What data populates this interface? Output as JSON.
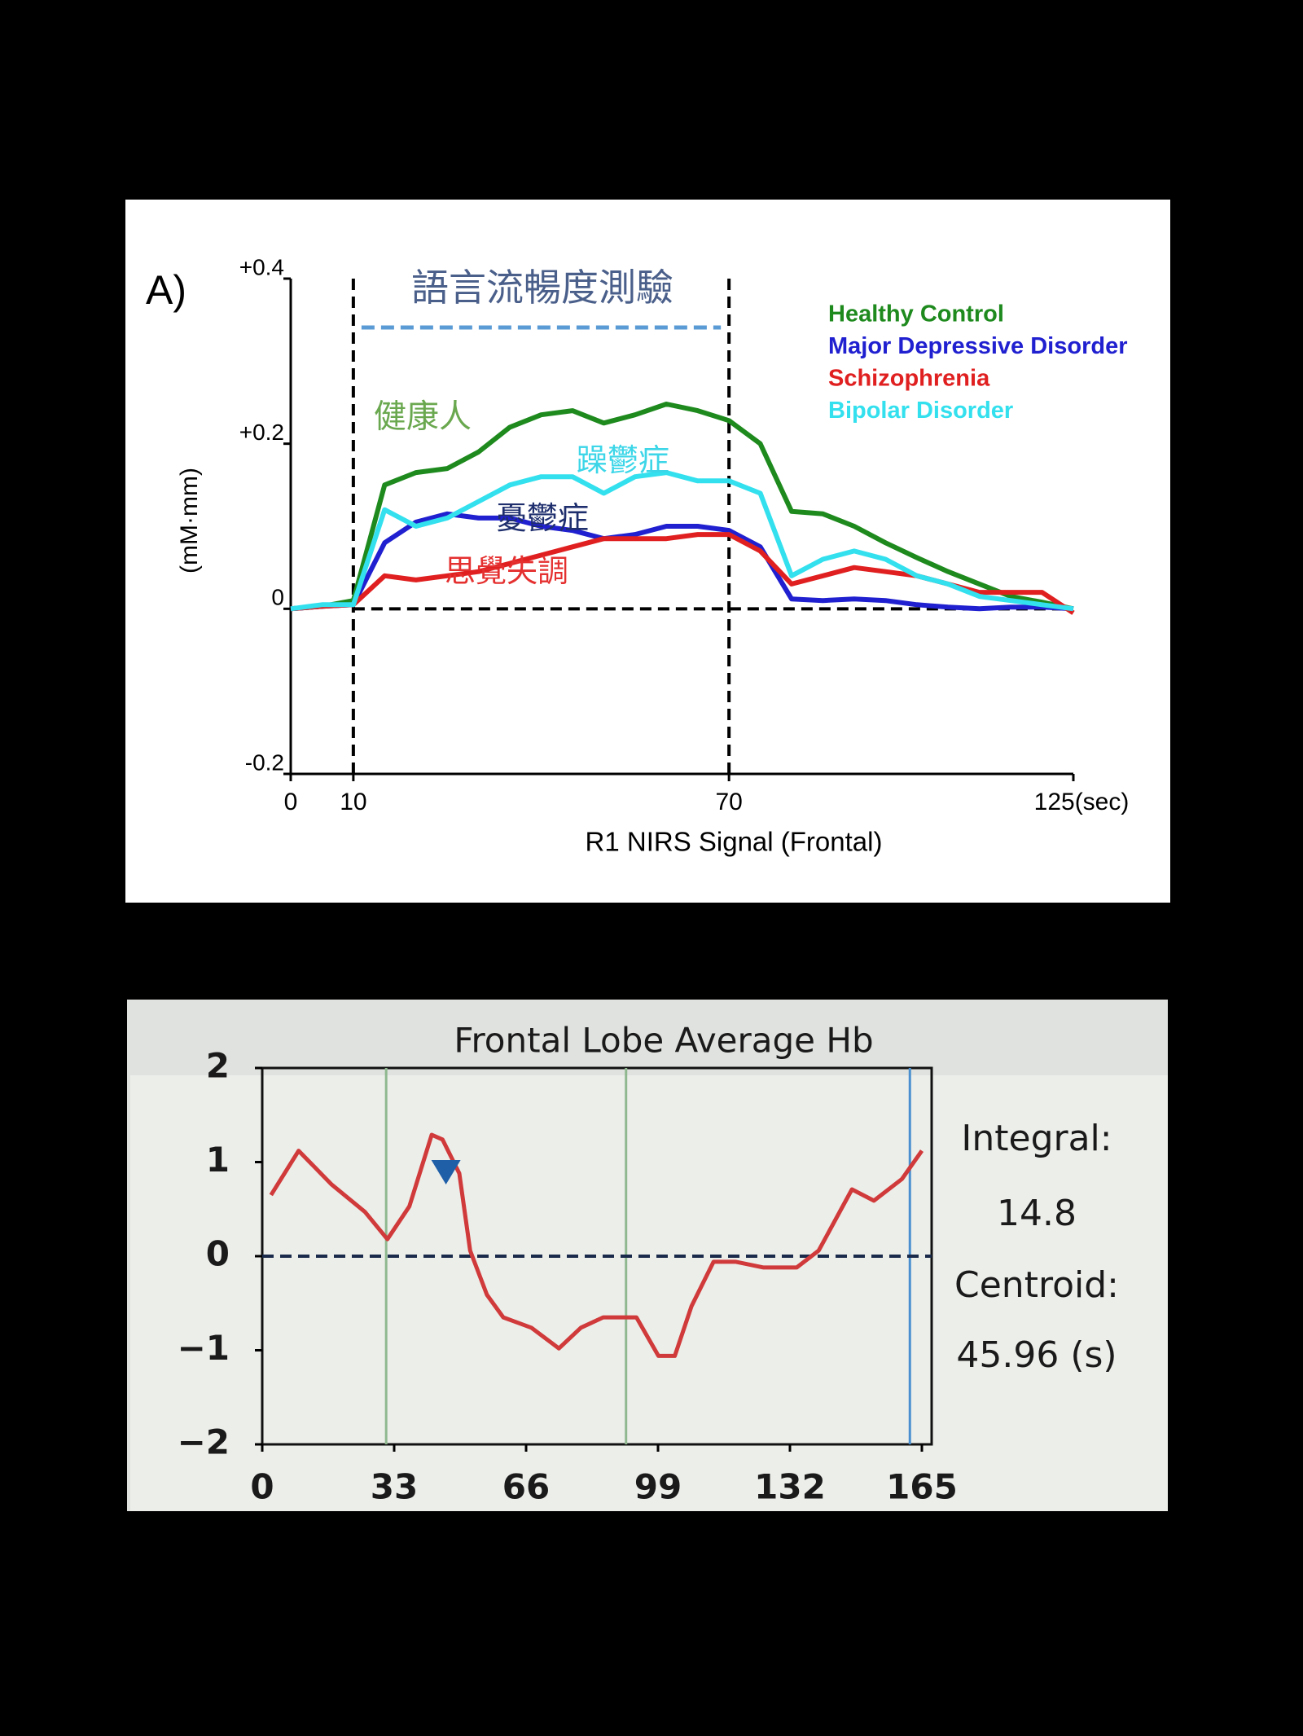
{
  "chart_data": [
    {
      "type": "line",
      "title": "A)",
      "xlabel": "R1 NIRS Signal (Frontal)",
      "ylabel": "(mM·mm)",
      "xlim": [
        0,
        125
      ],
      "ylim": [
        -0.2,
        0.4
      ],
      "xticks": [
        0,
        10,
        70,
        {
          "value": 125,
          "label": "125(sec)"
        }
      ],
      "yticks": [
        {
          "value": -0.2,
          "label": "-0.2"
        },
        0,
        {
          "value": 0.2,
          "label": "+0.2"
        },
        {
          "value": 0.4,
          "label": "+0.4"
        }
      ],
      "legend": "upper right",
      "vlines": [
        {
          "x": 10,
          "color": "#000000",
          "style": "dashed"
        },
        {
          "x": 70,
          "color": "#000000",
          "style": "dashed"
        }
      ],
      "hline": {
        "y": 0,
        "color": "#000000",
        "style": "dashed"
      },
      "annotations": [
        {
          "text": "語言流暢度測驗",
          "color": "#4a5f8a"
        },
        {
          "text": "健康人",
          "color": "#6aa84f"
        },
        {
          "text": "躁鬱症",
          "color": "#3cd6e8"
        },
        {
          "text": "憂鬱症",
          "color": "#1f2f6e"
        },
        {
          "text": "思覺失調",
          "color": "#e53030"
        }
      ],
      "x": [
        0,
        5,
        10,
        15,
        20,
        25,
        30,
        35,
        40,
        45,
        50,
        55,
        60,
        65,
        70,
        75,
        80,
        85,
        90,
        95,
        100,
        105,
        110,
        115,
        120,
        125
      ],
      "series": [
        {
          "name": "Healthy Control",
          "color": "#1e8a1e",
          "values": [
            0,
            0.003,
            0.01,
            0.15,
            0.165,
            0.17,
            0.19,
            0.22,
            0.235,
            0.24,
            0.225,
            0.235,
            0.248,
            0.24,
            0.228,
            0.2,
            0.118,
            0.115,
            0.1,
            0.08,
            0.062,
            0.045,
            0.03,
            0.015,
            0.008,
            0
          ]
        },
        {
          "name": "Major Depressive Disorder",
          "color": "#2020d0",
          "values": [
            0,
            0.003,
            0.005,
            0.08,
            0.105,
            0.115,
            0.11,
            0.11,
            0.1,
            0.095,
            0.085,
            0.09,
            0.1,
            0.1,
            0.095,
            0.075,
            0.012,
            0.01,
            0.012,
            0.01,
            0.005,
            0.002,
            0,
            0.002,
            0.002,
            0
          ]
        },
        {
          "name": "Schizophrenia",
          "color": "#e02020",
          "values": [
            0,
            0.003,
            0.005,
            0.04,
            0.035,
            0.04,
            0.045,
            0.055,
            0.065,
            0.075,
            0.085,
            0.085,
            0.085,
            0.09,
            0.09,
            0.07,
            0.03,
            0.04,
            0.05,
            0.045,
            0.04,
            0.03,
            0.02,
            0.02,
            0.02,
            -0.005
          ]
        },
        {
          "name": "Bipolar Disorder",
          "color": "#33e0ee",
          "values": [
            0,
            0.005,
            0.005,
            0.12,
            0.1,
            0.11,
            0.13,
            0.15,
            0.16,
            0.16,
            0.14,
            0.16,
            0.165,
            0.155,
            0.155,
            0.14,
            0.04,
            0.06,
            0.07,
            0.06,
            0.04,
            0.03,
            0.015,
            0.01,
            0.005,
            0
          ]
        }
      ]
    },
    {
      "type": "line",
      "title": "Frontal Lobe Average Hb",
      "xlim": [
        0,
        165
      ],
      "ylim": [
        -2,
        2
      ],
      "xticks": [
        0,
        33,
        66,
        99,
        132,
        165
      ],
      "yticks": [
        {
          "value": -2,
          "label": "−2"
        },
        {
          "value": -1,
          "label": "−1"
        },
        0,
        1,
        2
      ],
      "vlines": [
        {
          "x": 31,
          "color": "#8fb88f",
          "style": "solid"
        },
        {
          "x": 91,
          "color": "#8fb88f",
          "style": "solid"
        },
        {
          "x": 162,
          "color": "#4a90d0",
          "style": "solid"
        }
      ],
      "hline": {
        "y": 0,
        "color": "#1a2a4a",
        "style": "dashed"
      },
      "integral": {
        "label": "Integral:",
        "value": 14.8
      },
      "centroid": {
        "label": "Centroid:",
        "value": 45.96,
        "value_label": "45.96 (s)"
      },
      "color": "#d03a3a",
      "x": [
        2.2,
        9.1,
        17.4,
        25.7,
        31.3,
        36.8,
        42.4,
        45.1,
        49.3,
        52,
        56.2,
        60.3,
        67.3,
        74.2,
        79.7,
        85.3,
        93.6,
        99.1,
        103.2,
        107.4,
        112.9,
        118.5,
        125.4,
        133.7,
        139.2,
        147.5,
        153,
        160,
        165
      ],
      "values": [
        0.65,
        1.12,
        0.76,
        0.47,
        0.18,
        0.53,
        1.29,
        1.24,
        0.88,
        0.06,
        -0.41,
        -0.65,
        -0.76,
        -0.98,
        -0.76,
        -0.65,
        -0.65,
        -1.06,
        -1.06,
        -0.53,
        -0.06,
        -0.06,
        -0.12,
        -0.12,
        0.06,
        0.71,
        0.59,
        0.82,
        1.12
      ]
    }
  ]
}
